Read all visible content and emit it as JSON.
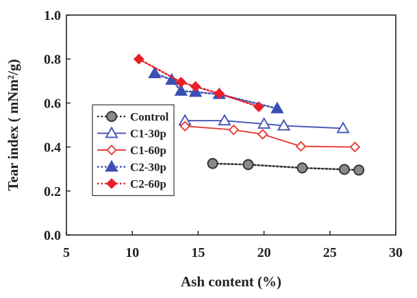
{
  "chart_data": {
    "type": "scatter",
    "title": "",
    "xlabel": "Ash content (%)",
    "ylabel": "Tear index ( mNm²/g)",
    "xlim": [
      5,
      30
    ],
    "ylim": [
      0.0,
      1.0
    ],
    "xticks": [
      "5",
      "10",
      "15",
      "20",
      "25",
      "30"
    ],
    "yticks": [
      "0.0",
      "0.2",
      "0.4",
      "0.6",
      "0.8",
      "1.0"
    ],
    "grid": false,
    "legend_position": "left-middle",
    "series": [
      {
        "name": "Control",
        "marker": "circle",
        "line": "dotted",
        "color": "#333333",
        "fill": "#8a8a8a",
        "points": [
          {
            "x": 16.1,
            "y": 0.325
          },
          {
            "x": 18.8,
            "y": 0.32
          },
          {
            "x": 22.9,
            "y": 0.305
          },
          {
            "x": 26.1,
            "y": 0.298
          },
          {
            "x": 27.2,
            "y": 0.295
          }
        ]
      },
      {
        "name": "C1-30p",
        "marker": "triangle-open",
        "line": "solid",
        "color": "#4a5ab8",
        "points": [
          {
            "x": 14.0,
            "y": 0.52
          },
          {
            "x": 17.0,
            "y": 0.52
          },
          {
            "x": 20.0,
            "y": 0.505
          },
          {
            "x": 21.5,
            "y": 0.497
          },
          {
            "x": 26.0,
            "y": 0.485
          }
        ]
      },
      {
        "name": "C1-60p",
        "marker": "diamond-open",
        "line": "solid",
        "color": "#e8413a",
        "points": [
          {
            "x": 14.0,
            "y": 0.495
          },
          {
            "x": 17.7,
            "y": 0.478
          },
          {
            "x": 19.9,
            "y": 0.458
          },
          {
            "x": 22.8,
            "y": 0.403
          },
          {
            "x": 26.9,
            "y": 0.4
          }
        ]
      },
      {
        "name": "C2-30p",
        "marker": "triangle-filled",
        "line": "dotted",
        "color": "#3a4fb5",
        "points": [
          {
            "x": 11.7,
            "y": 0.735
          },
          {
            "x": 13.0,
            "y": 0.705
          },
          {
            "x": 13.7,
            "y": 0.655
          },
          {
            "x": 14.8,
            "y": 0.65
          },
          {
            "x": 16.6,
            "y": 0.64
          },
          {
            "x": 21.0,
            "y": 0.575
          }
        ]
      },
      {
        "name": "C2-60p",
        "marker": "diamond-filled",
        "line": "dotted",
        "color": "#e8202a",
        "points": [
          {
            "x": 10.5,
            "y": 0.8
          },
          {
            "x": 13.7,
            "y": 0.695
          },
          {
            "x": 14.8,
            "y": 0.675
          },
          {
            "x": 16.6,
            "y": 0.643
          },
          {
            "x": 19.6,
            "y": 0.583
          }
        ]
      }
    ]
  }
}
